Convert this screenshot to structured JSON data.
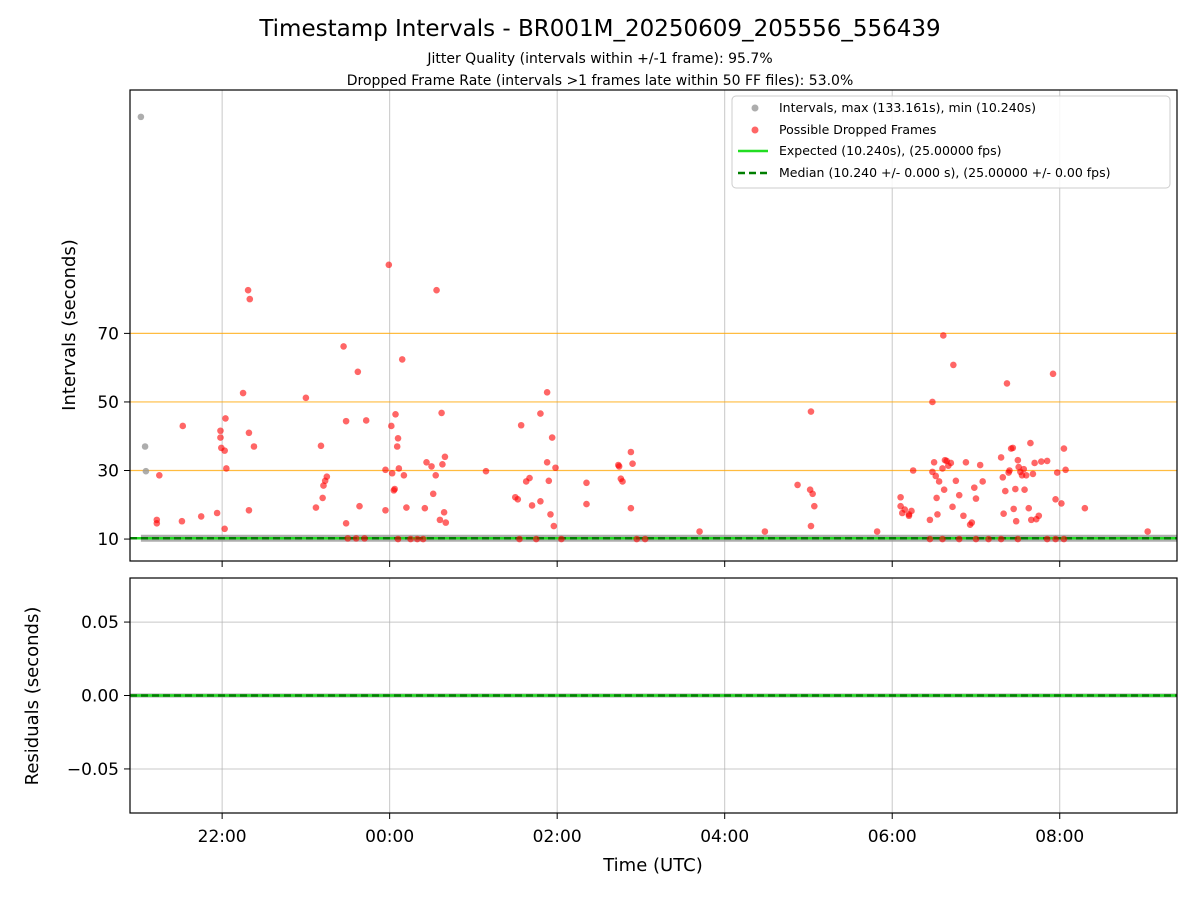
{
  "title": "Timestamp Intervals - BR001M_20250609_205556_556439",
  "subtitle_lines": [
    "Jitter Quality (intervals within +/-1 frame): 95.7%",
    "Dropped Frame Rate (intervals >1 frames late within 50 FF files): 53.0%"
  ],
  "colors": {
    "intervals": "#999999",
    "dropped": "#ff0000",
    "expected": "#22dd22",
    "median": "#007f00",
    "reference_lines": "#ffa500",
    "grid": "#b0b0b0"
  },
  "chart_data": [
    {
      "type": "scatter",
      "ylabel": "Intervals (seconds)",
      "xlabel": "",
      "x_unit": "hours relative to 2025-06-10 00:00 UTC",
      "x_range": [
        -3.1,
        9.4
      ],
      "ylim": [
        3.6,
        141
      ],
      "y_ticks": [
        10,
        30,
        50,
        70
      ],
      "y_tick_labels": [
        "10",
        "30",
        "50",
        "70"
      ],
      "reference_lines": [
        30,
        50,
        70
      ],
      "grid": true,
      "legend_position": "top-right",
      "legend": [
        "Intervals, max (133.161s), min (10.240s)",
        "Possible Dropped Frames",
        "Expected (10.240s), (25.00000 fps)",
        "Median (10.240 +/- 0.000 s), (25.00000 +/- 0.00 fps)"
      ],
      "expected_value": 10.24,
      "median_value": 10.24,
      "baseline_x_range": [
        -3.1,
        9.4
      ],
      "series": [
        {
          "name": "Intervals",
          "style": "gray",
          "points": [
            [
              -2.97,
              133.16
            ],
            [
              -2.92,
              37.0
            ],
            [
              -2.91,
              29.8
            ]
          ]
        },
        {
          "name": "Possible Dropped Frames",
          "style": "red",
          "points": [
            [
              -2.75,
              28.6
            ],
            [
              -2.78,
              15.6
            ],
            [
              -2.78,
              14.6
            ],
            [
              -2.47,
              43.0
            ],
            [
              -2.48,
              15.2
            ],
            [
              -2.25,
              16.6
            ],
            [
              -2.06,
              17.6
            ],
            [
              -2.01,
              36.6
            ],
            [
              -2.02,
              41.6
            ],
            [
              -2.02,
              39.6
            ],
            [
              -1.97,
              35.8
            ],
            [
              -1.96,
              45.2
            ],
            [
              -1.95,
              30.6
            ],
            [
              -1.97,
              13.0
            ],
            [
              -1.75,
              52.6
            ],
            [
              -1.69,
              82.6
            ],
            [
              -1.67,
              80.0
            ],
            [
              -1.68,
              41.0
            ],
            [
              -1.68,
              18.4
            ],
            [
              -1.62,
              37.0
            ],
            [
              -1.0,
              51.2
            ],
            [
              -0.88,
              19.2
            ],
            [
              -0.82,
              37.2
            ],
            [
              -0.79,
              25.6
            ],
            [
              -0.77,
              27.0
            ],
            [
              -0.75,
              28.2
            ],
            [
              -0.8,
              22.0
            ],
            [
              -0.55,
              66.2
            ],
            [
              -0.52,
              44.4
            ],
            [
              -0.52,
              14.6
            ],
            [
              -0.38,
              58.8
            ],
            [
              -0.36,
              19.6
            ],
            [
              -0.28,
              44.6
            ],
            [
              -0.5,
              10.2
            ],
            [
              -0.4,
              10.2
            ],
            [
              -0.3,
              10.2
            ],
            [
              -0.01,
              90.0
            ],
            [
              -0.05,
              18.4
            ],
            [
              -0.05,
              30.2
            ],
            [
              0.02,
              43.0
            ],
            [
              0.03,
              29.2
            ],
            [
              0.05,
              24.2
            ],
            [
              0.06,
              24.6
            ],
            [
              0.07,
              46.4
            ],
            [
              0.09,
              37.0
            ],
            [
              0.1,
              39.4
            ],
            [
              0.11,
              30.6
            ],
            [
              0.15,
              62.4
            ],
            [
              0.17,
              28.6
            ],
            [
              0.2,
              19.2
            ],
            [
              0.33,
              10.0
            ],
            [
              0.42,
              19.0
            ],
            [
              0.44,
              32.4
            ],
            [
              0.5,
              31.2
            ],
            [
              0.52,
              23.2
            ],
            [
              0.55,
              28.6
            ],
            [
              0.56,
              82.6
            ],
            [
              0.6,
              15.6
            ],
            [
              0.62,
              46.8
            ],
            [
              0.63,
              31.8
            ],
            [
              0.65,
              17.8
            ],
            [
              0.66,
              34.0
            ],
            [
              0.67,
              14.8
            ],
            [
              0.1,
              10.0
            ],
            [
              0.25,
              10.0
            ],
            [
              0.4,
              10.0
            ],
            [
              1.15,
              29.8
            ],
            [
              1.5,
              22.2
            ],
            [
              1.53,
              21.6
            ],
            [
              1.57,
              43.2
            ],
            [
              1.63,
              26.8
            ],
            [
              1.67,
              27.8
            ],
            [
              1.7,
              19.8
            ],
            [
              1.8,
              46.6
            ],
            [
              1.8,
              21.0
            ],
            [
              1.88,
              52.8
            ],
            [
              1.88,
              32.4
            ],
            [
              1.9,
              27.0
            ],
            [
              1.92,
              17.2
            ],
            [
              1.94,
              39.6
            ],
            [
              1.96,
              13.8
            ],
            [
              1.98,
              30.8
            ],
            [
              1.55,
              10.0
            ],
            [
              1.75,
              10.0
            ],
            [
              2.05,
              10.0
            ],
            [
              2.35,
              26.4
            ],
            [
              2.35,
              20.2
            ],
            [
              2.73,
              31.6
            ],
            [
              2.74,
              31.2
            ],
            [
              2.76,
              27.6
            ],
            [
              2.78,
              26.8
            ],
            [
              2.88,
              35.4
            ],
            [
              2.88,
              19.0
            ],
            [
              2.9,
              32.0
            ],
            [
              2.95,
              10.0
            ],
            [
              3.05,
              10.0
            ],
            [
              3.7,
              12.2
            ],
            [
              4.48,
              12.2
            ],
            [
              4.87,
              25.8
            ],
            [
              5.02,
              24.4
            ],
            [
              5.03,
              47.2
            ],
            [
              5.05,
              23.2
            ],
            [
              5.07,
              19.6
            ],
            [
              5.03,
              13.8
            ],
            [
              5.82,
              12.2
            ],
            [
              6.1,
              22.2
            ],
            [
              6.1,
              19.6
            ],
            [
              6.12,
              17.6
            ],
            [
              6.15,
              18.6
            ],
            [
              6.2,
              16.8
            ],
            [
              6.2,
              17.2
            ],
            [
              6.25,
              30.0
            ],
            [
              6.23,
              18.2
            ],
            [
              6.45,
              15.6
            ],
            [
              6.48,
              50.0
            ],
            [
              6.48,
              29.6
            ],
            [
              6.5,
              32.4
            ],
            [
              6.52,
              28.4
            ],
            [
              6.53,
              22.0
            ],
            [
              6.54,
              17.2
            ],
            [
              6.56,
              26.8
            ],
            [
              6.6,
              30.6
            ],
            [
              6.61,
              69.4
            ],
            [
              6.62,
              24.4
            ],
            [
              6.63,
              33.0
            ],
            [
              6.65,
              32.8
            ],
            [
              6.67,
              31.4
            ],
            [
              6.7,
              32.2
            ],
            [
              6.72,
              19.4
            ],
            [
              6.73,
              60.8
            ],
            [
              6.76,
              27.0
            ],
            [
              6.8,
              22.8
            ],
            [
              6.85,
              16.8
            ],
            [
              6.88,
              32.4
            ],
            [
              6.93,
              14.2
            ],
            [
              6.95,
              14.8
            ],
            [
              6.98,
              25.0
            ],
            [
              7.0,
              21.8
            ],
            [
              7.05,
              31.6
            ],
            [
              7.08,
              26.8
            ],
            [
              7.3,
              33.8
            ],
            [
              7.32,
              28.0
            ],
            [
              7.33,
              17.4
            ],
            [
              7.35,
              24.0
            ],
            [
              7.37,
              55.4
            ],
            [
              7.39,
              29.4
            ],
            [
              7.4,
              30.0
            ],
            [
              7.42,
              36.4
            ],
            [
              7.44,
              36.6
            ],
            [
              7.45,
              18.8
            ],
            [
              7.47,
              24.6
            ],
            [
              7.48,
              15.2
            ],
            [
              7.5,
              33.0
            ],
            [
              7.51,
              31.0
            ],
            [
              7.53,
              29.6
            ],
            [
              7.55,
              28.6
            ],
            [
              7.57,
              30.4
            ],
            [
              7.58,
              24.4
            ],
            [
              7.6,
              28.6
            ],
            [
              7.63,
              19.0
            ],
            [
              7.65,
              38.0
            ],
            [
              7.66,
              15.6
            ],
            [
              7.68,
              29.0
            ],
            [
              7.7,
              32.2
            ],
            [
              7.72,
              15.8
            ],
            [
              7.75,
              16.8
            ],
            [
              7.78,
              32.6
            ],
            [
              7.85,
              32.8
            ],
            [
              7.92,
              58.2
            ],
            [
              7.95,
              21.6
            ],
            [
              7.97,
              29.4
            ],
            [
              8.02,
              20.4
            ],
            [
              8.05,
              36.4
            ],
            [
              8.07,
              30.2
            ],
            [
              8.3,
              19.0
            ],
            [
              6.45,
              10.0
            ],
            [
              6.6,
              10.0
            ],
            [
              6.8,
              10.0
            ],
            [
              7.0,
              10.0
            ],
            [
              7.15,
              10.0
            ],
            [
              7.3,
              10.0
            ],
            [
              7.5,
              10.0
            ],
            [
              7.85,
              10.0
            ],
            [
              7.95,
              10.0
            ],
            [
              8.05,
              10.0
            ],
            [
              9.05,
              12.2
            ]
          ]
        }
      ]
    },
    {
      "type": "line",
      "ylabel": "Residuals (seconds)",
      "xlabel": "Time (UTC)",
      "x_range": [
        -3.1,
        9.4
      ],
      "ylim": [
        -0.08,
        0.08
      ],
      "y_ticks": [
        0.05,
        0.0,
        -0.05
      ],
      "y_tick_labels": [
        "0.05",
        "0.00",
        "−0.05"
      ],
      "x_ticks": [
        -2,
        0,
        2,
        4,
        6,
        8
      ],
      "x_tick_labels": [
        "22:00",
        "00:00",
        "02:00",
        "04:00",
        "06:00",
        "08:00"
      ],
      "grid": true,
      "series": [
        {
          "name": "Residuals",
          "style": "gray",
          "y": 0.0
        },
        {
          "name": "Expected",
          "style": "green",
          "y": 0.0
        },
        {
          "name": "Median",
          "style": "dashed-green",
          "y": 0.0
        }
      ]
    }
  ]
}
